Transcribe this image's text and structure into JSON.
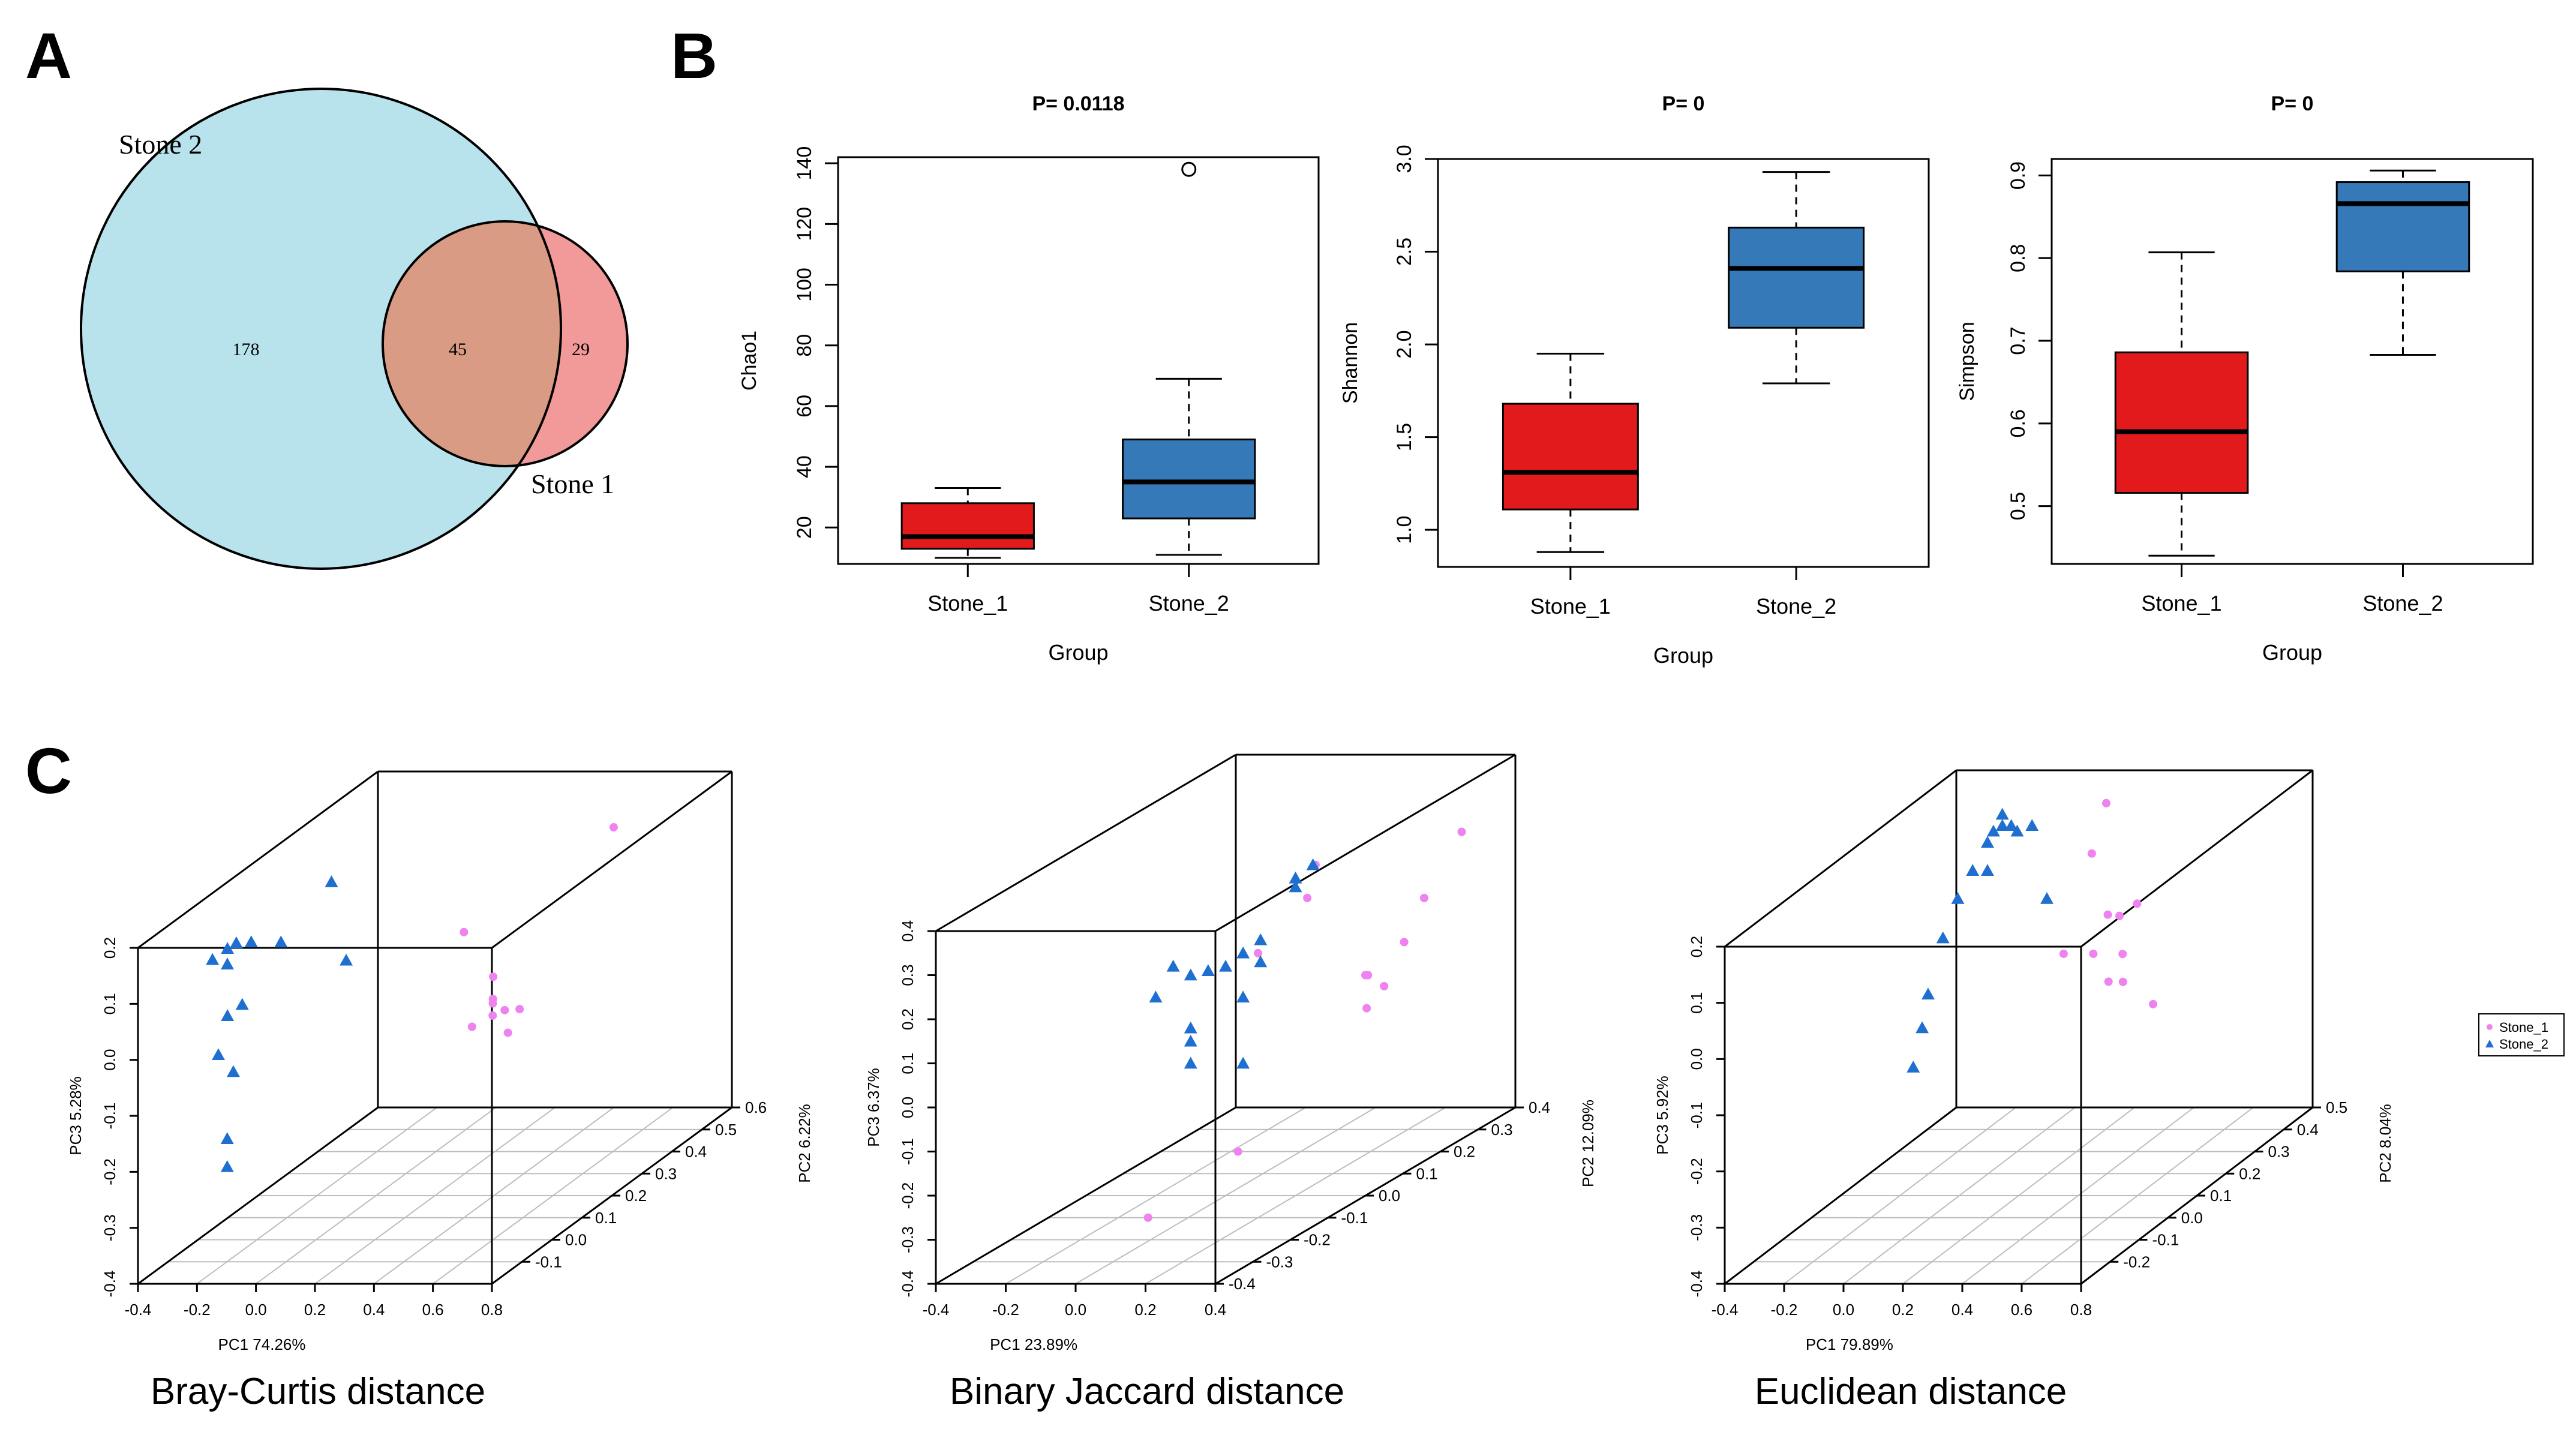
{
  "panels": {
    "a": "A",
    "b": "B",
    "c": "C"
  },
  "chart_data": [
    {
      "type": "venn",
      "panel": "A",
      "sets": [
        {
          "name": "Stone 2",
          "color": "#b9e3ec",
          "unique": 178
        },
        {
          "name": "Stone 1",
          "color": "#f29a9a",
          "unique": 29
        }
      ],
      "overlap": 45,
      "overlap_color": "#d99b83"
    },
    {
      "type": "box",
      "panel": "B",
      "title": "P= 0.0118",
      "xlabel": "Group",
      "ylabel": "Chao1",
      "ylim": [
        8,
        142
      ],
      "yticks": [
        20,
        40,
        60,
        80,
        100,
        120,
        140
      ],
      "categories": [
        "Stone_1",
        "Stone_2"
      ],
      "colors": [
        "#e31a1c",
        "#3579b8"
      ],
      "boxes": [
        {
          "min": 10,
          "q1": 13,
          "median": 17,
          "q3": 28,
          "max": 33,
          "outliers": []
        },
        {
          "min": 11,
          "q1": 23,
          "median": 35,
          "q3": 49,
          "max": 69,
          "outliers": [
            138
          ]
        }
      ]
    },
    {
      "type": "box",
      "panel": "B",
      "title": "P= 0",
      "xlabel": "Group",
      "ylabel": "Shannon",
      "ylim": [
        0.8,
        3.0
      ],
      "yticks": [
        1.0,
        1.5,
        2.0,
        2.5,
        3.0
      ],
      "categories": [
        "Stone_1",
        "Stone_2"
      ],
      "colors": [
        "#e31a1c",
        "#3579b8"
      ],
      "boxes": [
        {
          "min": 0.88,
          "q1": 1.11,
          "median": 1.31,
          "q3": 1.68,
          "max": 1.95,
          "outliers": []
        },
        {
          "min": 1.79,
          "q1": 2.09,
          "median": 2.41,
          "q3": 2.63,
          "max": 2.93,
          "outliers": []
        }
      ]
    },
    {
      "type": "box",
      "panel": "B",
      "title": "P= 0",
      "xlabel": "Group",
      "ylabel": "Simpson",
      "ylim": [
        0.43,
        0.92
      ],
      "yticks": [
        0.5,
        0.6,
        0.7,
        0.8,
        0.9
      ],
      "categories": [
        "Stone_1",
        "Stone_2"
      ],
      "colors": [
        "#e31a1c",
        "#3579b8"
      ],
      "boxes": [
        {
          "min": 0.44,
          "q1": 0.516,
          "median": 0.59,
          "q3": 0.686,
          "max": 0.807,
          "outliers": []
        },
        {
          "min": 0.683,
          "q1": 0.784,
          "median": 0.866,
          "q3": 0.892,
          "max": 0.906,
          "outliers": []
        }
      ]
    },
    {
      "type": "scatter3d",
      "panel": "C",
      "caption": "Bray-Curtis distance",
      "xlabel": "PC1 74.26%",
      "ylabel": "PC2 6.22%",
      "zlabel": "PC3 5.28%",
      "xlim": [
        -0.4,
        0.8
      ],
      "ylim": [
        -0.2,
        0.6
      ],
      "zlim": [
        -0.4,
        0.2
      ],
      "xticks": [
        -0.4,
        -0.2,
        0.0,
        0.2,
        0.4,
        0.6,
        0.8
      ],
      "yticks": [
        -0.1,
        0.0,
        0.1,
        0.2,
        0.3,
        0.4,
        0.5,
        0.6
      ],
      "zticks": [
        -0.4,
        -0.3,
        -0.2,
        -0.1,
        0.0,
        0.1,
        0.2
      ],
      "series": [
        {
          "name": "Stone_1",
          "marker": "dot",
          "color": "#ee82ee",
          "points": [
            [
              0.45,
              0.55,
              0.12
            ],
            [
              0.4,
              0.1,
              0.11
            ],
            [
              0.6,
              0.0,
              0.03
            ],
            [
              0.62,
              -0.02,
              0.03
            ],
            [
              0.64,
              0.0,
              0.01
            ],
            [
              0.58,
              -0.05,
              0.0
            ],
            [
              0.55,
              0.05,
              0.05
            ],
            [
              0.6,
              0.05,
              -0.05
            ],
            [
              0.65,
              -0.05,
              0.02
            ],
            [
              0.66,
              0.03,
              0.0
            ]
          ]
        },
        {
          "name": "Stone_2",
          "marker": "triangle",
          "color": "#1f6fd0",
          "points": [
            [
              -0.1,
              0.15,
              0.18
            ],
            [
              -0.3,
              -0.05,
              0.12
            ],
            [
              -0.3,
              0.0,
              0.12
            ],
            [
              -0.28,
              -0.02,
              0.1
            ],
            [
              -0.27,
              0.0,
              0.13
            ],
            [
              -0.25,
              0.03,
              0.12
            ],
            [
              -0.2,
              0.08,
              0.1
            ],
            [
              -0.05,
              0.15,
              0.04
            ],
            [
              -0.3,
              0.0,
              0.0
            ],
            [
              -0.28,
              -0.05,
              -0.05
            ],
            [
              -0.25,
              0.0,
              0.02
            ],
            [
              -0.28,
              0.0,
              -0.1
            ],
            [
              -0.25,
              -0.05,
              -0.2
            ],
            [
              -0.25,
              -0.05,
              -0.25
            ]
          ]
        }
      ]
    },
    {
      "type": "scatter3d",
      "panel": "C",
      "caption": "Binary Jaccard distance",
      "xlabel": "PC1 23.89%",
      "ylabel": "PC2 12.09%",
      "zlabel": "PC3 6.37%",
      "xlim": [
        -0.4,
        0.4
      ],
      "ylim": [
        -0.4,
        0.4
      ],
      "zlim": [
        -0.4,
        0.4
      ],
      "xticks": [
        -0.4,
        -0.2,
        0.0,
        0.2,
        0.4
      ],
      "yticks": [
        -0.4,
        -0.3,
        -0.2,
        -0.1,
        0.0,
        0.1,
        0.2,
        0.3,
        0.4
      ],
      "zticks": [
        -0.4,
        -0.3,
        -0.2,
        -0.1,
        0.0,
        0.1,
        0.2,
        0.3,
        0.4
      ],
      "series": [
        {
          "name": "Stone_1",
          "marker": "dot",
          "color": "#ee82ee",
          "points": [
            [
              0.3,
              0.35,
              0.25
            ],
            [
              0.3,
              0.25,
              0.15
            ],
            [
              0.35,
              0.15,
              0.1
            ],
            [
              0.3,
              0.1,
              0.05
            ],
            [
              0.35,
              0.05,
              0.0
            ],
            [
              0.15,
              0.1,
              0.3
            ],
            [
              0.18,
              0.05,
              0.25
            ],
            [
              0.4,
              0.0,
              0.1
            ],
            [
              0.4,
              0.05,
              0.05
            ],
            [
              0.2,
              -0.1,
              0.2
            ],
            [
              0.25,
              -0.2,
              -0.2
            ],
            [
              0.1,
              -0.3,
              -0.3
            ]
          ]
        },
        {
          "name": "Stone_2",
          "marker": "triangle",
          "color": "#1f6fd0",
          "points": [
            [
              0.2,
              0.0,
              0.32
            ],
            [
              0.2,
              0.0,
              0.3
            ],
            [
              0.25,
              0.0,
              0.35
            ],
            [
              -0.15,
              0.0,
              0.12
            ],
            [
              -0.1,
              0.0,
              0.1
            ],
            [
              -0.05,
              0.0,
              0.11
            ],
            [
              0.0,
              0.0,
              0.12
            ],
            [
              0.05,
              0.0,
              0.15
            ],
            [
              0.1,
              0.0,
              0.18
            ],
            [
              0.1,
              0.0,
              0.13
            ],
            [
              0.05,
              0.0,
              0.05
            ],
            [
              -0.2,
              0.0,
              0.05
            ],
            [
              -0.1,
              0.0,
              -0.05
            ],
            [
              -0.1,
              0.0,
              -0.02
            ],
            [
              -0.1,
              0.0,
              -0.1
            ],
            [
              0.05,
              0.0,
              -0.1
            ]
          ]
        }
      ]
    },
    {
      "type": "scatter3d",
      "panel": "C",
      "caption": "Euclidean distance",
      "xlabel": "PC1 79.89%",
      "ylabel": "PC2 8.04%",
      "zlabel": "PC3 5.92%",
      "xlim": [
        -0.4,
        0.8
      ],
      "ylim": [
        -0.3,
        0.5
      ],
      "zlim": [
        -0.4,
        0.2
      ],
      "xticks": [
        -0.4,
        -0.2,
        0.0,
        0.2,
        0.4,
        0.6,
        0.8
      ],
      "yticks": [
        -0.2,
        -0.1,
        0.0,
        0.1,
        0.2,
        0.3,
        0.4,
        0.5
      ],
      "zticks": [
        -0.4,
        -0.3,
        -0.2,
        -0.1,
        0.0,
        0.1,
        0.2
      ],
      "series": [
        {
          "name": "Stone_1",
          "marker": "dot",
          "color": "#ee82ee",
          "points": [
            [
              0.3,
              0.3,
              0.22
            ],
            [
              0.3,
              0.25,
              0.15
            ],
            [
              0.5,
              0.1,
              0.1
            ],
            [
              0.52,
              0.12,
              0.09
            ],
            [
              0.55,
              0.15,
              0.1
            ],
            [
              0.5,
              0.05,
              0.05
            ],
            [
              0.55,
              0.1,
              0.03
            ],
            [
              0.6,
              0.05,
              0.0
            ],
            [
              0.6,
              0.0,
              0.02
            ],
            [
              0.4,
              0.05,
              0.05
            ],
            [
              0.75,
              0.0,
              -0.02
            ]
          ]
        },
        {
          "name": "Stone_2",
          "marker": "triangle",
          "color": "#1f6fd0",
          "points": [
            [
              -0.05,
              0.3,
              0.2
            ],
            [
              -0.05,
              0.3,
              0.18
            ],
            [
              -0.08,
              0.3,
              0.17
            ],
            [
              -0.02,
              0.3,
              0.18
            ],
            [
              0.0,
              0.3,
              0.17
            ],
            [
              0.05,
              0.3,
              0.18
            ],
            [
              -0.1,
              0.3,
              0.15
            ],
            [
              -0.15,
              0.3,
              0.1
            ],
            [
              -0.2,
              0.3,
              0.05
            ],
            [
              -0.1,
              0.3,
              0.1
            ],
            [
              -0.25,
              0.3,
              -0.02
            ],
            [
              -0.3,
              0.3,
              -0.12
            ],
            [
              -0.32,
              0.3,
              -0.18
            ],
            [
              -0.35,
              0.3,
              -0.25
            ],
            [
              0.1,
              0.3,
              0.05
            ]
          ]
        }
      ]
    }
  ],
  "legend": {
    "entries": [
      {
        "label": "Stone_1",
        "marker": "dot",
        "color": "#ee82ee"
      },
      {
        "label": "Stone_2",
        "marker": "triangle",
        "color": "#1f6fd0"
      }
    ]
  }
}
